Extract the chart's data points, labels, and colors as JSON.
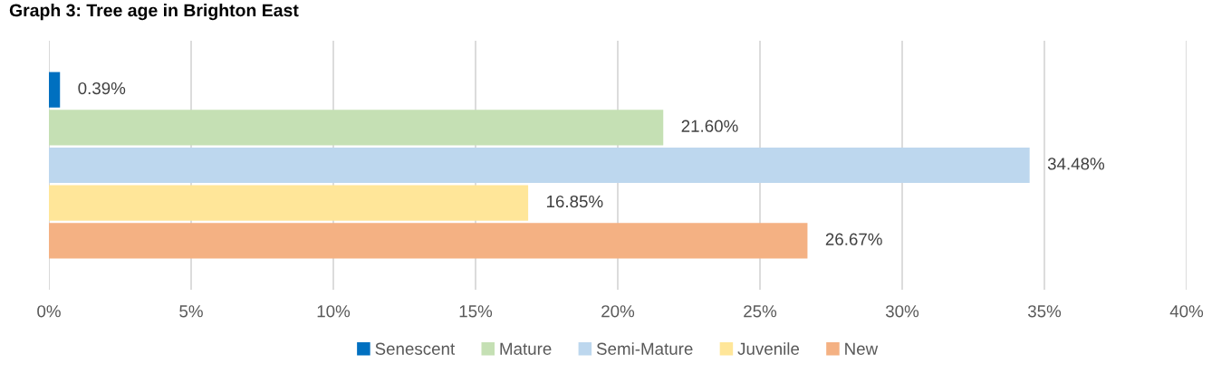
{
  "chart_data": {
    "type": "bar",
    "orientation": "horizontal",
    "title": "Graph 3: Tree age in Brighton East",
    "categories": [
      null
    ],
    "series": [
      {
        "name": "Senescent",
        "color": "#0070c0",
        "values": [
          0.39
        ],
        "value_labels": [
          "0.39%"
        ]
      },
      {
        "name": "Mature",
        "color": "#c5e0b4",
        "values": [
          21.6
        ],
        "value_labels": [
          "21.60%"
        ]
      },
      {
        "name": "Semi-Mature",
        "color": "#bdd7ee",
        "values": [
          34.48
        ],
        "value_labels": [
          "34.48%"
        ]
      },
      {
        "name": "Juvenile",
        "color": "#ffe699",
        "values": [
          16.85
        ],
        "value_labels": [
          "16.85%"
        ]
      },
      {
        "name": "New",
        "color": "#f4b183",
        "values": [
          26.67
        ],
        "value_labels": [
          "26.67%"
        ]
      }
    ],
    "xlim": [
      0,
      40
    ],
    "xticks": [
      {
        "value": 0,
        "label": "0%"
      },
      {
        "value": 5,
        "label": "5%"
      },
      {
        "value": 10,
        "label": "10%"
      },
      {
        "value": 15,
        "label": "15%"
      },
      {
        "value": 20,
        "label": "20%"
      },
      {
        "value": 25,
        "label": "25%"
      },
      {
        "value": 30,
        "label": "30%"
      },
      {
        "value": 35,
        "label": "35%"
      },
      {
        "value": 40,
        "label": "40%"
      }
    ],
    "grid": "x",
    "legend": "bottom"
  }
}
